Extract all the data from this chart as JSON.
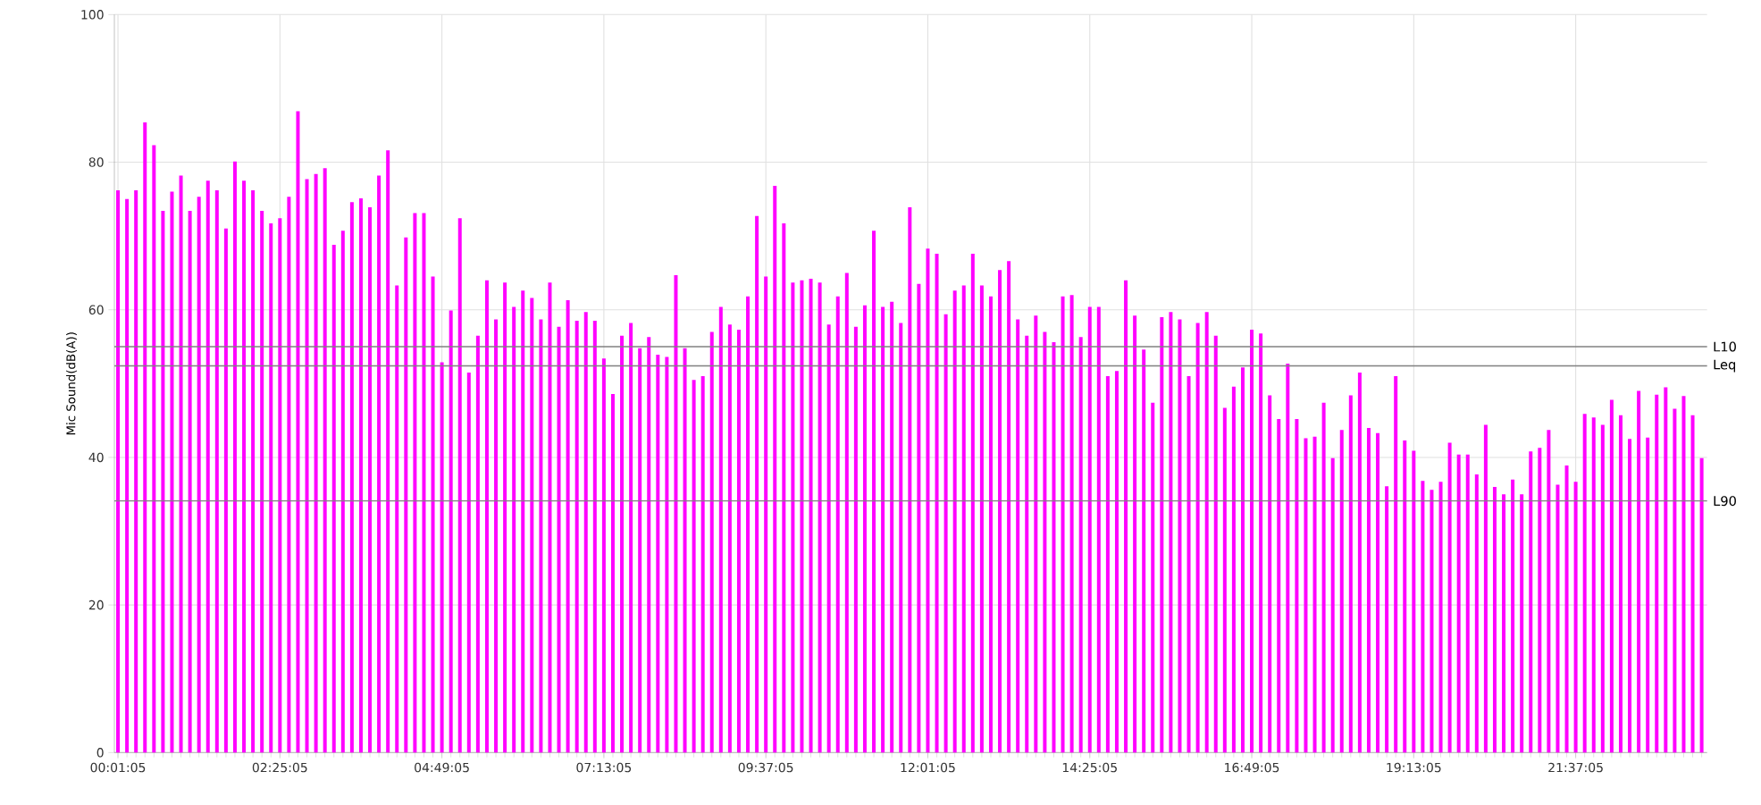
{
  "chart_data": {
    "type": "bar",
    "ylabel": "Mic Sound(dB(A))",
    "color": "#ff00ff",
    "categories": [
      "00:01:05",
      null,
      null,
      null,
      null,
      null,
      null,
      null,
      null,
      null,
      null,
      null,
      null,
      null,
      null,
      null,
      null,
      null,
      "02:25:05",
      null,
      null,
      null,
      null,
      null,
      null,
      null,
      null,
      null,
      null,
      null,
      null,
      null,
      null,
      null,
      null,
      null,
      "04:49:05",
      null,
      null,
      null,
      null,
      null,
      null,
      null,
      null,
      null,
      null,
      null,
      null,
      null,
      null,
      null,
      null,
      null,
      "07:13:05",
      null,
      null,
      null,
      null,
      null,
      null,
      null,
      null,
      null,
      null,
      null,
      null,
      null,
      null,
      null,
      null,
      null,
      "09:37:05",
      null,
      null,
      null,
      null,
      null,
      null,
      null,
      null,
      null,
      null,
      null,
      null,
      null,
      null,
      null,
      null,
      null,
      "12:01:05",
      null,
      null,
      null,
      null,
      null,
      null,
      null,
      null,
      null,
      null,
      null,
      null,
      null,
      null,
      null,
      null,
      null,
      "14:25:05",
      null,
      null,
      null,
      null,
      null,
      null,
      null,
      null,
      null,
      null,
      null,
      null,
      null,
      null,
      null,
      null,
      null,
      "16:49:05",
      null,
      null,
      null,
      null,
      null,
      null,
      null,
      null,
      null,
      null,
      null,
      null,
      null,
      null,
      null,
      null,
      null,
      "19:13:05",
      null,
      null,
      null,
      null,
      null,
      null,
      null,
      null,
      null,
      null,
      null,
      null,
      null,
      null,
      null,
      null,
      null,
      "21:37:05",
      null,
      null,
      null,
      null,
      null,
      null,
      null,
      null,
      null,
      null,
      null,
      null,
      null,
      null
    ],
    "values": [
      76.2,
      75.0,
      76.2,
      85.4,
      82.3,
      73.4,
      76.0,
      78.2,
      73.4,
      75.3,
      77.5,
      76.2,
      71.0,
      80.1,
      77.5,
      76.2,
      73.4,
      71.7,
      72.4,
      75.3,
      86.9,
      77.7,
      78.4,
      79.2,
      68.8,
      70.7,
      74.6,
      75.1,
      73.9,
      78.2,
      81.6,
      63.3,
      69.8,
      73.1,
      73.1,
      64.5,
      52.9,
      59.9,
      72.4,
      51.5,
      56.5,
      64.0,
      58.7,
      63.7,
      60.4,
      62.6,
      61.6,
      58.7,
      63.7,
      57.7,
      61.3,
      58.5,
      59.7,
      58.5,
      53.4,
      48.6,
      56.5,
      58.2,
      54.8,
      56.3,
      53.9,
      53.6,
      64.7,
      54.8,
      50.5,
      51.0,
      57.0,
      60.4,
      58.0,
      57.3,
      61.8,
      72.7,
      64.5,
      76.8,
      71.7,
      63.7,
      64.0,
      64.2,
      63.7,
      58.0,
      61.8,
      65.0,
      57.7,
      60.6,
      70.7,
      60.4,
      61.1,
      58.2,
      73.9,
      63.5,
      68.3,
      67.6,
      59.4,
      62.6,
      63.3,
      67.6,
      63.3,
      61.8,
      65.4,
      66.6,
      58.7,
      56.5,
      59.2,
      57.0,
      55.6,
      61.8,
      62.0,
      56.3,
      60.4,
      60.4,
      51.0,
      51.7,
      64.0,
      59.2,
      54.6,
      47.4,
      59.0,
      59.7,
      58.7,
      51.0,
      58.2,
      59.7,
      56.5,
      46.7,
      49.6,
      52.2,
      57.3,
      56.8,
      48.4,
      45.2,
      52.7,
      45.2,
      42.6,
      42.8,
      47.4,
      39.9,
      43.7,
      48.4,
      51.5,
      44.0,
      43.3,
      36.1,
      51.0,
      42.3,
      40.9,
      36.8,
      35.6,
      36.7,
      42.0,
      40.4,
      40.4,
      37.7,
      44.4,
      36.0,
      35.0,
      37.0,
      35.0,
      40.8,
      41.3,
      43.7,
      36.3,
      38.9,
      36.7,
      45.9,
      45.4,
      44.4,
      47.8,
      45.7,
      42.5,
      49.0,
      42.7,
      48.5,
      49.5,
      46.6,
      48.3,
      45.7,
      39.9
    ],
    "ylim": [
      0,
      100
    ],
    "yticks": [
      0,
      20,
      40,
      60,
      80,
      100
    ],
    "grid": true,
    "ref_lines": [
      {
        "axis": "y",
        "value": 55.0,
        "label": "L10",
        "color": "#808080"
      },
      {
        "axis": "y",
        "value": 52.4,
        "label": "Leq",
        "color": "#808080"
      },
      {
        "axis": "y",
        "value": 34.1,
        "label": "L90",
        "color": "#808080"
      }
    ]
  }
}
